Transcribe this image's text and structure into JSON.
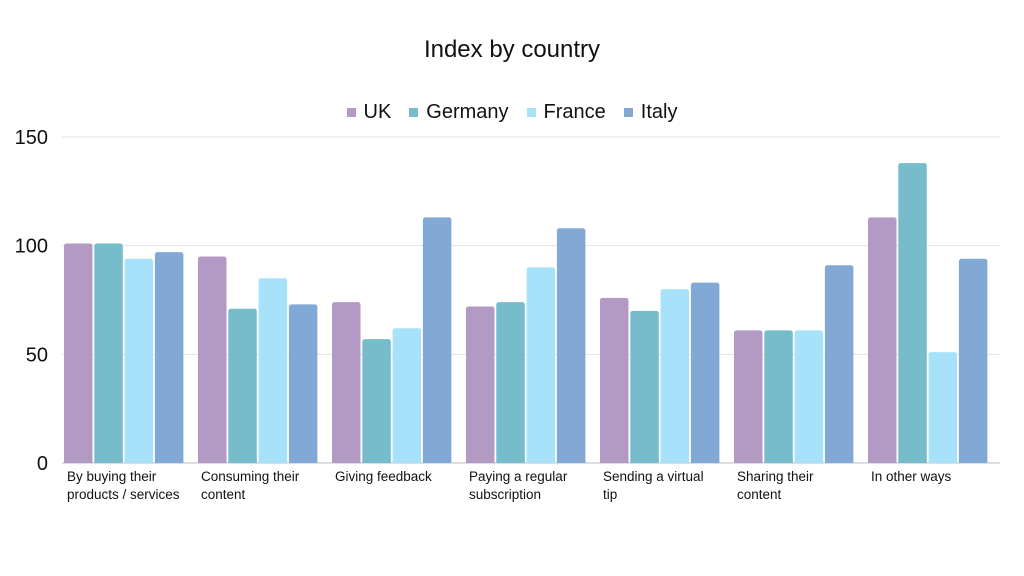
{
  "chart_data": {
    "type": "bar",
    "title": "Index by country",
    "xlabel": "",
    "ylabel": "",
    "ylim": [
      0,
      150
    ],
    "yticks": [
      0,
      50,
      100,
      150
    ],
    "grid": true,
    "legend_position": "top-center",
    "categories": [
      "By buying their products / services",
      "Consuming their content",
      "Giving feedback",
      "Paying a regular subscription",
      "Sending a virtual tip",
      "Sharing their content",
      "In other ways"
    ],
    "series": [
      {
        "name": "UK",
        "color": "#b39ac5",
        "values": [
          101,
          95,
          74,
          72,
          76,
          61,
          113
        ]
      },
      {
        "name": "Germany",
        "color": "#76bccb",
        "values": [
          101,
          71,
          57,
          74,
          70,
          61,
          138
        ]
      },
      {
        "name": "France",
        "color": "#a8e2fa",
        "values": [
          94,
          85,
          62,
          90,
          80,
          61,
          51
        ]
      },
      {
        "name": "Italy",
        "color": "#82a8d5",
        "values": [
          97,
          73,
          113,
          108,
          83,
          91,
          94
        ]
      }
    ]
  }
}
